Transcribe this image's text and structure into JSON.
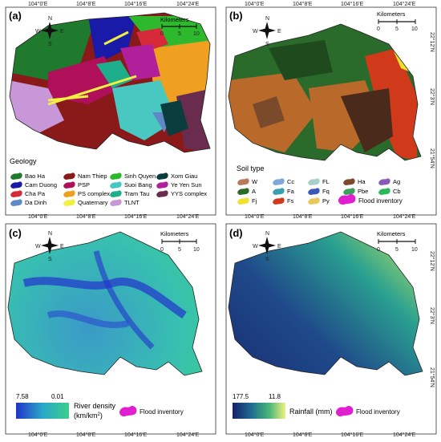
{
  "axes": {
    "top_ticks": [
      "104°0'E",
      "104°8'E",
      "104°16'E",
      "104°24'E"
    ],
    "bottom_ticks": [
      "104°0'E",
      "104°8'E",
      "104°16'E",
      "104°24'E"
    ],
    "right_ticks": [
      "22°12'N",
      "22°3'N",
      "21°54'N"
    ]
  },
  "scale": {
    "title": "Kilometers",
    "labels": [
      "0",
      "5",
      "10"
    ]
  },
  "north_arrow": {
    "n": "N",
    "s": "S",
    "e": "E",
    "w": "W"
  },
  "panel_a": {
    "label": "(a)",
    "legend_title": "Geology",
    "legend": [
      {
        "name": "Bao Ha",
        "color": "#1f7a2e"
      },
      {
        "name": "Nam Thiep",
        "color": "#8a1a1a"
      },
      {
        "name": "Sinh Quyen",
        "color": "#2eb82e"
      },
      {
        "name": "Xom Giau",
        "color": "#0a3d3d"
      },
      {
        "name": "Cam Duong",
        "color": "#1a1aa8"
      },
      {
        "name": "PSP",
        "color": "#b0105a"
      },
      {
        "name": "Suoi Bang",
        "color": "#49c7c1"
      },
      {
        "name": "Ye Yen Sun",
        "color": "#b21f9b"
      },
      {
        "name": "Cha Pa",
        "color": "#d6293a"
      },
      {
        "name": "PS complex",
        "color": "#f0a020"
      },
      {
        "name": "Tram Tau",
        "color": "#1fae8c"
      },
      {
        "name": "YYS complex",
        "color": "#6a2c4e"
      },
      {
        "name": "Da Dinh",
        "color": "#5e88c6"
      },
      {
        "name": "Quaternary",
        "color": "#f0f040"
      },
      {
        "name": "TLNT",
        "color": "#c897d8"
      }
    ]
  },
  "panel_b": {
    "label": "(b)",
    "legend_title": "Soil type",
    "legend": [
      {
        "name": "W",
        "color": "#b97a5a"
      },
      {
        "name": "Cc",
        "color": "#7fa8d8"
      },
      {
        "name": "FL",
        "color": "#a8d0c8"
      },
      {
        "name": "Ha",
        "color": "#7a4a2a"
      },
      {
        "name": "Ag",
        "color": "#8a5ab8"
      },
      {
        "name": "A",
        "color": "#2a6a2a"
      },
      {
        "name": "Fa",
        "color": "#3aa0b0"
      },
      {
        "name": "Fq",
        "color": "#3a58b8"
      },
      {
        "name": "Pbe",
        "color": "#3aa05a"
      },
      {
        "name": "Cb",
        "color": "#2ab85a"
      },
      {
        "name": "Fj",
        "color": "#f0e030"
      },
      {
        "name": "Fs",
        "color": "#d03a1a"
      },
      {
        "name": "Py",
        "color": "#e8c85a"
      }
    ],
    "flood_label": "Flood inventory"
  },
  "panel_c": {
    "label": "(c)",
    "max": "7.58",
    "min": "0.01",
    "title_line1": "River density",
    "title_line2": "(km/km",
    "title_sup": "2",
    "title_close": ")",
    "flood_label": "Flood inventory"
  },
  "panel_d": {
    "label": "(d)",
    "max": "177.5",
    "min": "11.8",
    "title": "Rainfall (mm)",
    "flood_label": "Flood inventory"
  },
  "colors": {
    "flood": "#e020d0",
    "river_high": "#2233cc",
    "river_low": "#3ad08a",
    "rain_high": "#15226a",
    "rain_low": "#f0f080"
  }
}
